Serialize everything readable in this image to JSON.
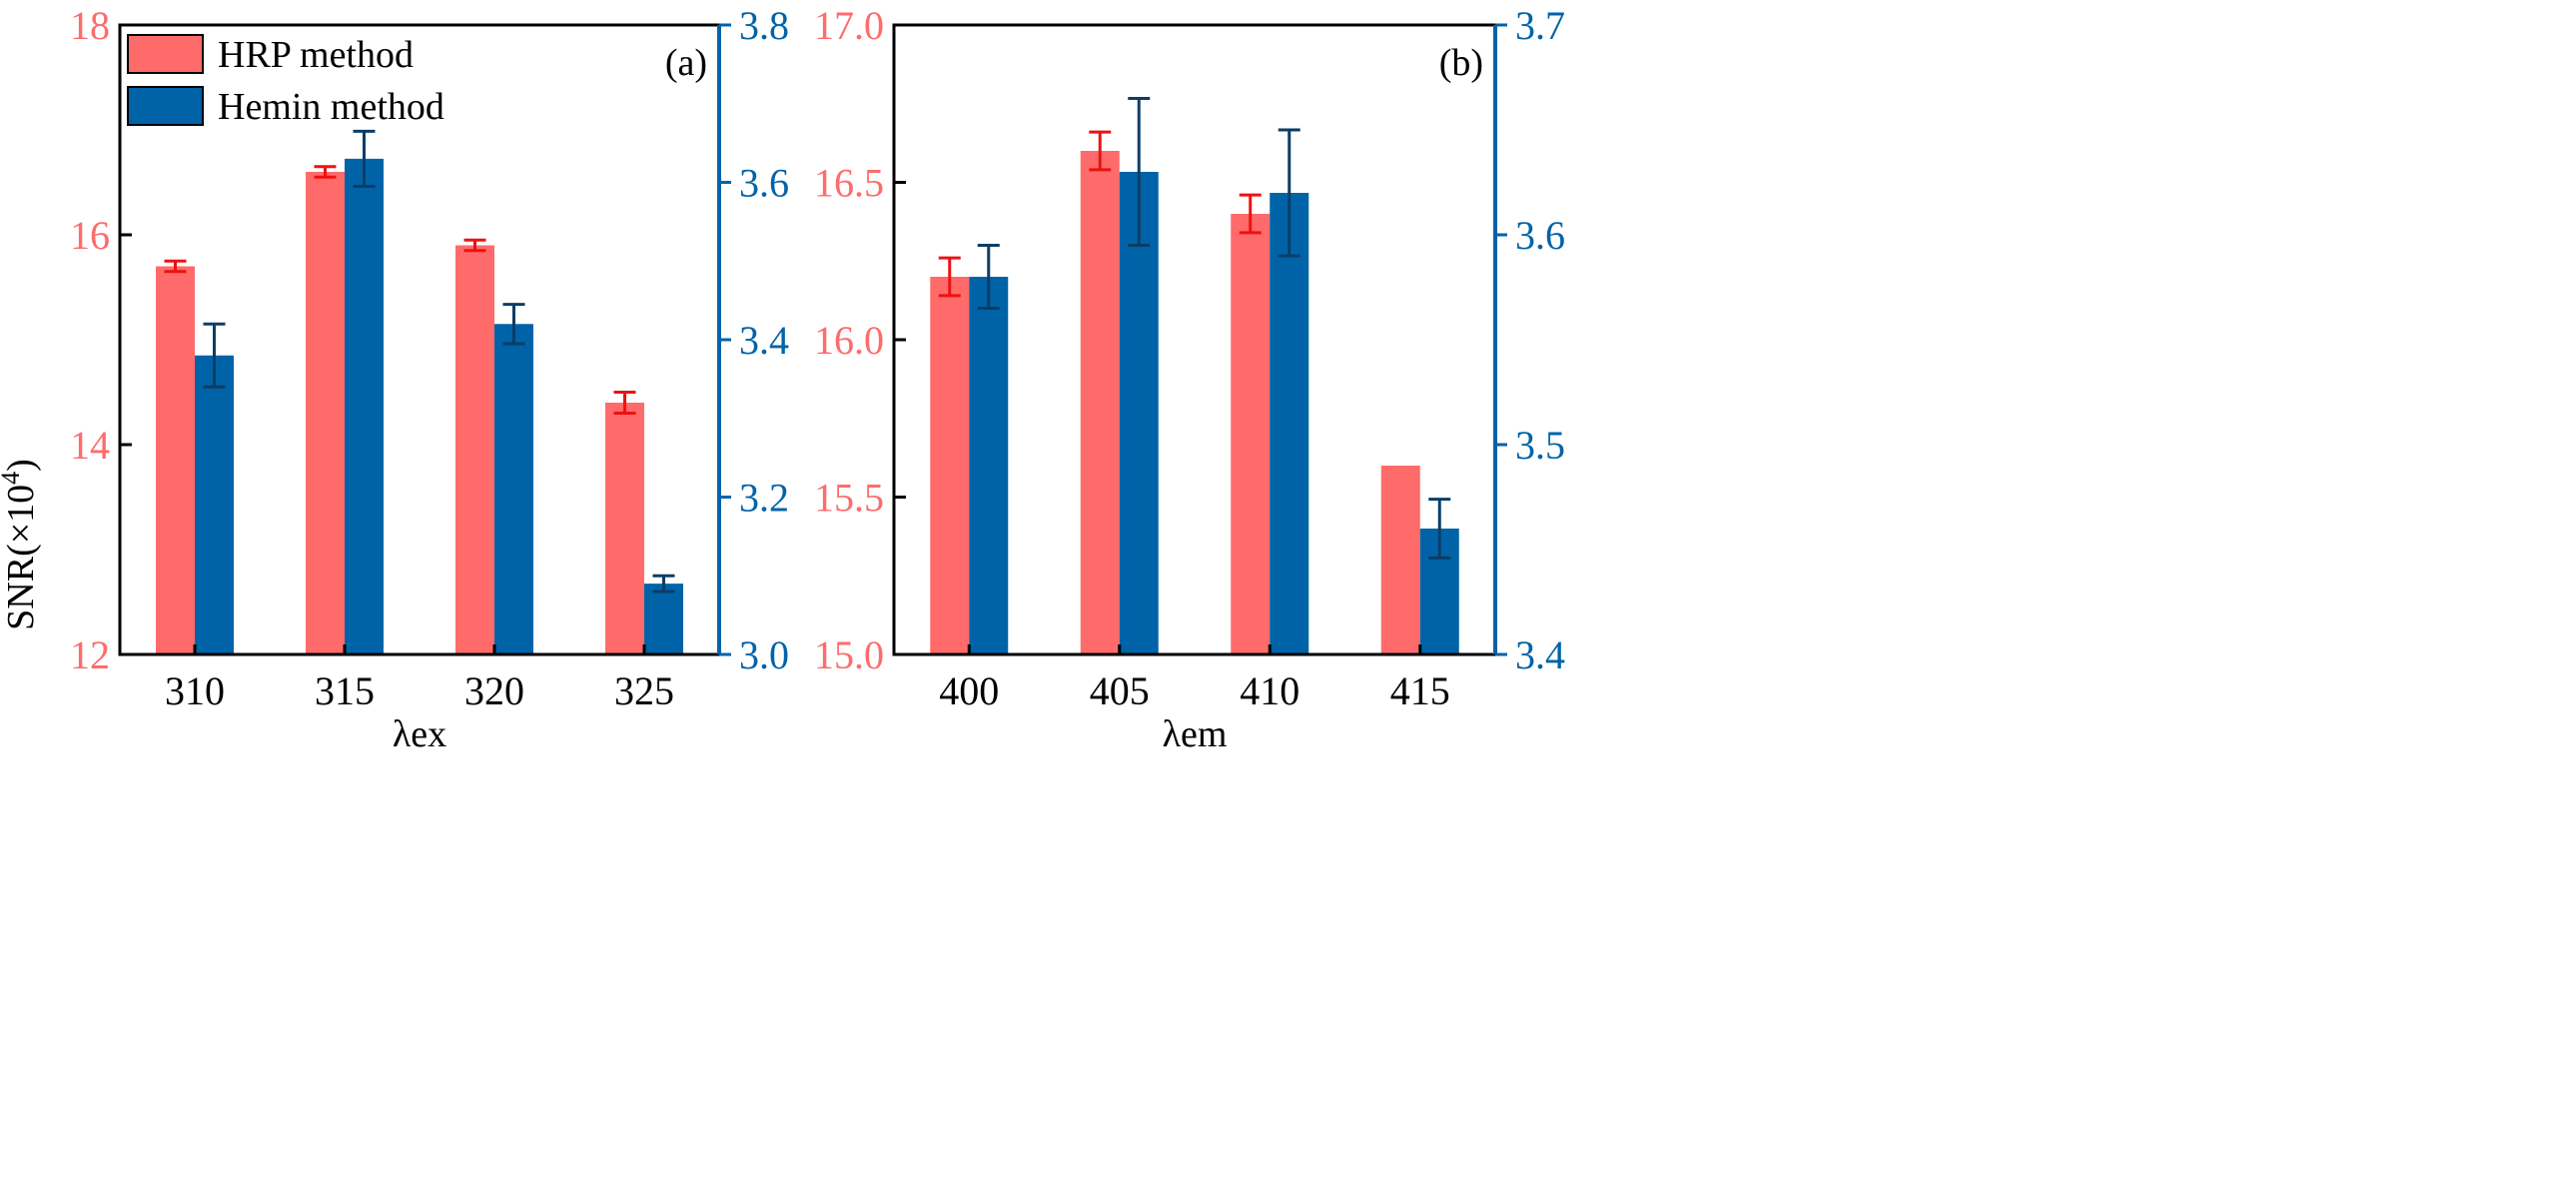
{
  "colors": {
    "hrp": "#FF6B6B",
    "hemin": "#0063A8",
    "hrp_error": "#EE1111",
    "hemin_error": "#0B3D66",
    "axis": "#000000"
  },
  "ylabel_main": "SNR(×10",
  "ylabel_sup": "4",
  "ylabel_close": ")",
  "chart_data": [
    {
      "type": "bar",
      "panel": "(a)",
      "xlabel": "λex",
      "categories": [
        "310",
        "315",
        "320",
        "325"
      ],
      "left_ylim": [
        12,
        18
      ],
      "left_ticks": [
        "12",
        "14",
        "16",
        "18"
      ],
      "left_tick_values": [
        12,
        14,
        16,
        18
      ],
      "right_ylim": [
        3.0,
        3.8
      ],
      "right_ticks": [
        "3.0",
        "3.2",
        "3.4",
        "3.6",
        "3.8"
      ],
      "right_tick_values": [
        3.0,
        3.2,
        3.4,
        3.6,
        3.8
      ],
      "series": [
        {
          "name": "HRP method",
          "axis": "left",
          "values": [
            15.7,
            16.6,
            15.9,
            14.4
          ],
          "errors": [
            0.05,
            0.05,
            0.05,
            0.1
          ]
        },
        {
          "name": "Hemin method",
          "axis": "right",
          "values": [
            3.38,
            3.63,
            3.42,
            3.09
          ],
          "errors": [
            0.04,
            0.035,
            0.025,
            0.01
          ]
        }
      ],
      "legend": [
        "HRP method",
        "Hemin method"
      ],
      "legend_position": "top-left"
    },
    {
      "type": "bar",
      "panel": "(b)",
      "xlabel": "λem",
      "categories": [
        "400",
        "405",
        "410",
        "415"
      ],
      "left_ylim": [
        15.0,
        17.0
      ],
      "left_ticks": [
        "15.0",
        "15.5",
        "16.0",
        "16.5",
        "17.0"
      ],
      "left_tick_values": [
        15.0,
        15.5,
        16.0,
        16.5,
        17.0
      ],
      "right_ylim": [
        3.4,
        3.7
      ],
      "right_ticks": [
        "3.4",
        "3.5",
        "3.6",
        "3.7"
      ],
      "right_tick_values": [
        3.4,
        3.5,
        3.6,
        3.7
      ],
      "series": [
        {
          "name": "HRP method",
          "axis": "left",
          "values": [
            16.2,
            16.6,
            16.4,
            15.6
          ],
          "errors": [
            0.06,
            0.06,
            0.06,
            0
          ]
        },
        {
          "name": "Hemin method",
          "axis": "right",
          "values": [
            3.58,
            3.63,
            3.62,
            3.46
          ],
          "errors": [
            0.015,
            0.035,
            0.03,
            0.014
          ]
        }
      ]
    }
  ]
}
